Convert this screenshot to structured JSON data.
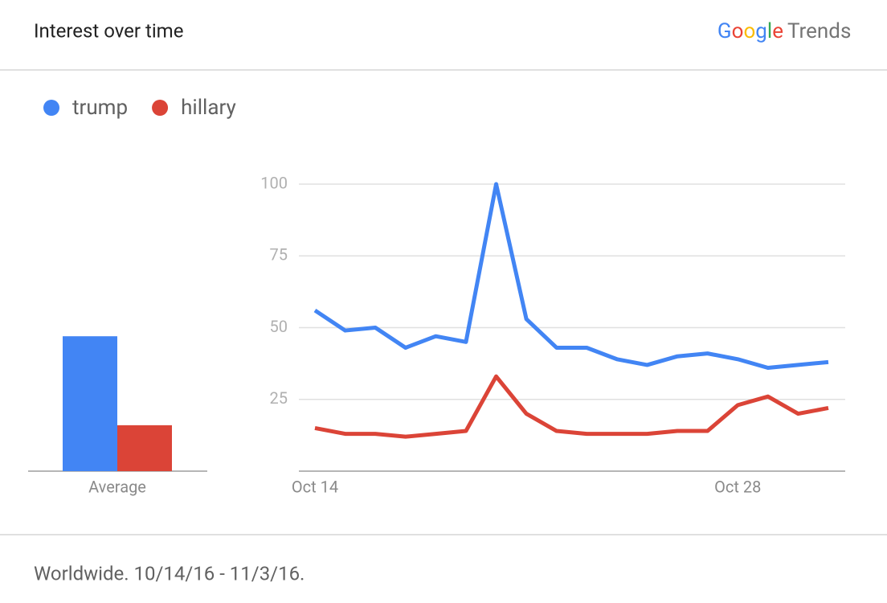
{
  "header": {
    "title": "Interest over time",
    "brand": "Google",
    "product": "Trends"
  },
  "chart_data": {
    "type": "line",
    "categories": [
      "Oct 14",
      null,
      null,
      null,
      null,
      null,
      null,
      null,
      null,
      null,
      null,
      null,
      null,
      null,
      "Oct 28",
      null,
      null,
      null
    ],
    "series": [
      {
        "name": "trump",
        "color": "#4285f4",
        "values": [
          56,
          49,
          50,
          43,
          47,
          45,
          100,
          53,
          43,
          43,
          39,
          37,
          40,
          41,
          39,
          36,
          37,
          38
        ],
        "average": 47
      },
      {
        "name": "hillary",
        "color": "#db4437",
        "values": [
          15,
          13,
          13,
          12,
          13,
          14,
          33,
          20,
          14,
          13,
          13,
          13,
          14,
          14,
          23,
          26,
          20,
          22
        ],
        "average": 16
      }
    ],
    "average_label": "Average",
    "ylim": [
      0,
      100
    ],
    "yticks": [
      25,
      50,
      75,
      100
    ],
    "grid": true
  },
  "footer": "Worldwide. 10/14/16 - 11/3/16."
}
